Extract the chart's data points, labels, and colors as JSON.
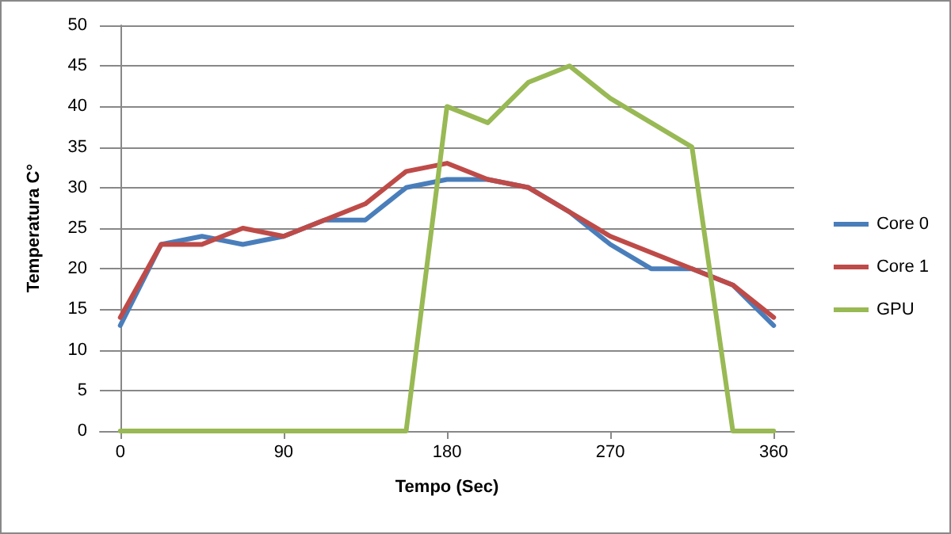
{
  "chart_data": {
    "type": "line",
    "xlabel": "Tempo (Sec)",
    "ylabel": "Temperatura C°",
    "x": [
      0,
      22.5,
      45,
      67.5,
      90,
      112.5,
      135,
      157.5,
      180,
      202.5,
      225,
      247.5,
      270,
      292.5,
      315,
      337.5,
      360
    ],
    "series": [
      {
        "name": "Core 0",
        "color": "#4a7ebb",
        "values": [
          13,
          23,
          24,
          23,
          24,
          26,
          26,
          30,
          31,
          31,
          30,
          27,
          23,
          20,
          20,
          18,
          13
        ]
      },
      {
        "name": "Core 1",
        "color": "#be4b48",
        "values": [
          14,
          23,
          23,
          25,
          24,
          26,
          28,
          32,
          33,
          31,
          30,
          27,
          24,
          22,
          20,
          18,
          14
        ]
      },
      {
        "name": "GPU",
        "color": "#98b954",
        "values": [
          0,
          0,
          0,
          0,
          0,
          0,
          0,
          0,
          40,
          38,
          43,
          45,
          41,
          38,
          35,
          0,
          0
        ]
      }
    ],
    "xlim": [
      -11.25,
      371.25
    ],
    "xticks": [
      0,
      90,
      180,
      270,
      360
    ],
    "ylim": [
      0,
      50
    ],
    "yticks": [
      0,
      5,
      10,
      15,
      20,
      25,
      30,
      35,
      40,
      45,
      50
    ],
    "grid": "y",
    "legend": "right",
    "marker": "none",
    "line_style": "solid"
  }
}
